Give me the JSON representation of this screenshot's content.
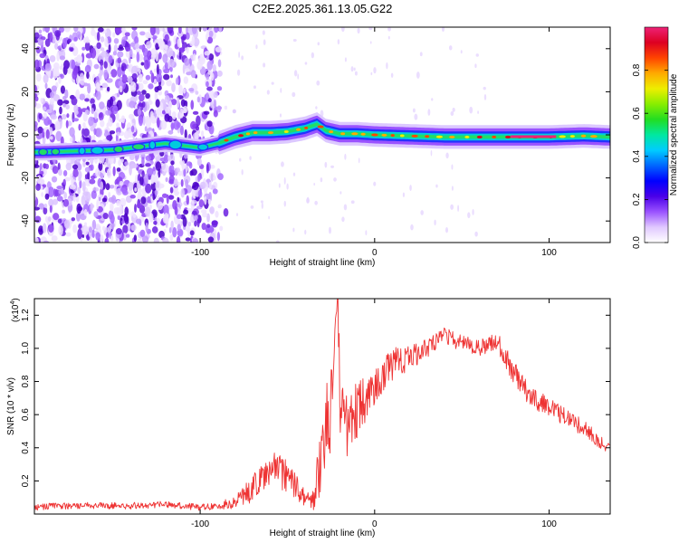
{
  "title": "C2E2.2025.361.13.05.G22",
  "colors": {
    "snr_line": "#ee3333",
    "colormap": [
      "#ffffff",
      "#e0c8ff",
      "#9a52ff",
      "#4a00e8",
      "#0000ff",
      "#0066ff",
      "#00ccff",
      "#00e8a0",
      "#22dd22",
      "#88ee00",
      "#eeee00",
      "#ffaa00",
      "#ff4400",
      "#dd0022",
      "#ee2277"
    ]
  },
  "chart_data": [
    {
      "type": "heatmap",
      "xlabel": "Height of straight line (km)",
      "ylabel": "Frequency (Hz)",
      "xlim": [
        -195,
        135
      ],
      "ylim": [
        -50,
        50
      ],
      "xticks": [
        -100,
        0,
        100
      ],
      "xtick_labels": [
        "-100",
        "0",
        "100"
      ],
      "yticks": [
        -40,
        -20,
        0,
        20,
        40
      ],
      "ytick_labels": [
        "-40",
        "-20",
        "0",
        "20",
        "40"
      ],
      "ridge_x": [
        -190,
        -170,
        -150,
        -130,
        -120,
        -110,
        -100,
        -90,
        -80,
        -70,
        -60,
        -50,
        -40,
        -33,
        -28,
        -20,
        -10,
        0,
        20,
        40,
        60,
        80,
        100,
        120,
        135
      ],
      "ridge_freq": [
        -8,
        -7.5,
        -7,
        -5,
        -4,
        -5,
        -6,
        -4,
        -1,
        1,
        1,
        1.5,
        3,
        5,
        2,
        0.5,
        0.5,
        0,
        -0.5,
        -1,
        -1,
        -1,
        -1,
        -0.5,
        -1
      ],
      "colorbar": {
        "label": "Normalized spectral amplitude",
        "range": [
          0,
          1
        ],
        "ticks": [
          0.0,
          0.2,
          0.4,
          0.6,
          0.8
        ],
        "tick_labels": [
          "0.0",
          "0.2",
          "0.4",
          "0.6",
          "0.8"
        ]
      }
    },
    {
      "type": "line",
      "xlabel": "Height of straight line (km)",
      "ylabel": "SNR (10 * v/v)",
      "y_scale_label": "(x10",
      "y_scale_exp": "4",
      "y_scale_close": ")",
      "xlim": [
        -195,
        135
      ],
      "ylim": [
        0,
        1.3
      ],
      "xticks": [
        -100,
        0,
        100
      ],
      "xtick_labels": [
        "-100",
        "0",
        "100"
      ],
      "yticks": [
        0.2,
        0.4,
        0.6,
        0.8,
        1.0,
        1.2
      ],
      "ytick_labels": [
        "0.2",
        "0.4",
        "0.6",
        "0.8",
        "1.0",
        "1.2"
      ],
      "series": [
        {
          "name": "SNR",
          "x": [
            -195,
            -180,
            -160,
            -140,
            -120,
            -100,
            -90,
            -80,
            -70,
            -60,
            -50,
            -40,
            -35,
            -30,
            -25,
            -21,
            -20,
            -15,
            -10,
            0,
            10,
            20,
            30,
            40,
            50,
            60,
            70,
            80,
            90,
            100,
            110,
            120,
            130,
            135
          ],
          "values": [
            0.04,
            0.05,
            0.05,
            0.05,
            0.06,
            0.04,
            0.05,
            0.07,
            0.15,
            0.28,
            0.22,
            0.1,
            0.08,
            0.4,
            0.6,
            1.28,
            0.7,
            0.55,
            0.6,
            0.75,
            0.9,
            0.95,
            1.0,
            1.08,
            1.03,
            1.0,
            1.05,
            0.85,
            0.7,
            0.65,
            0.58,
            0.52,
            0.43,
            0.39
          ],
          "noise": [
            0.02,
            0.02,
            0.02,
            0.02,
            0.02,
            0.02,
            0.02,
            0.04,
            0.08,
            0.12,
            0.1,
            0.05,
            0.06,
            0.3,
            0.35,
            0.1,
            0.25,
            0.22,
            0.2,
            0.12,
            0.1,
            0.08,
            0.06,
            0.05,
            0.05,
            0.05,
            0.06,
            0.08,
            0.06,
            0.06,
            0.06,
            0.05,
            0.04,
            0.03
          ]
        }
      ]
    }
  ]
}
